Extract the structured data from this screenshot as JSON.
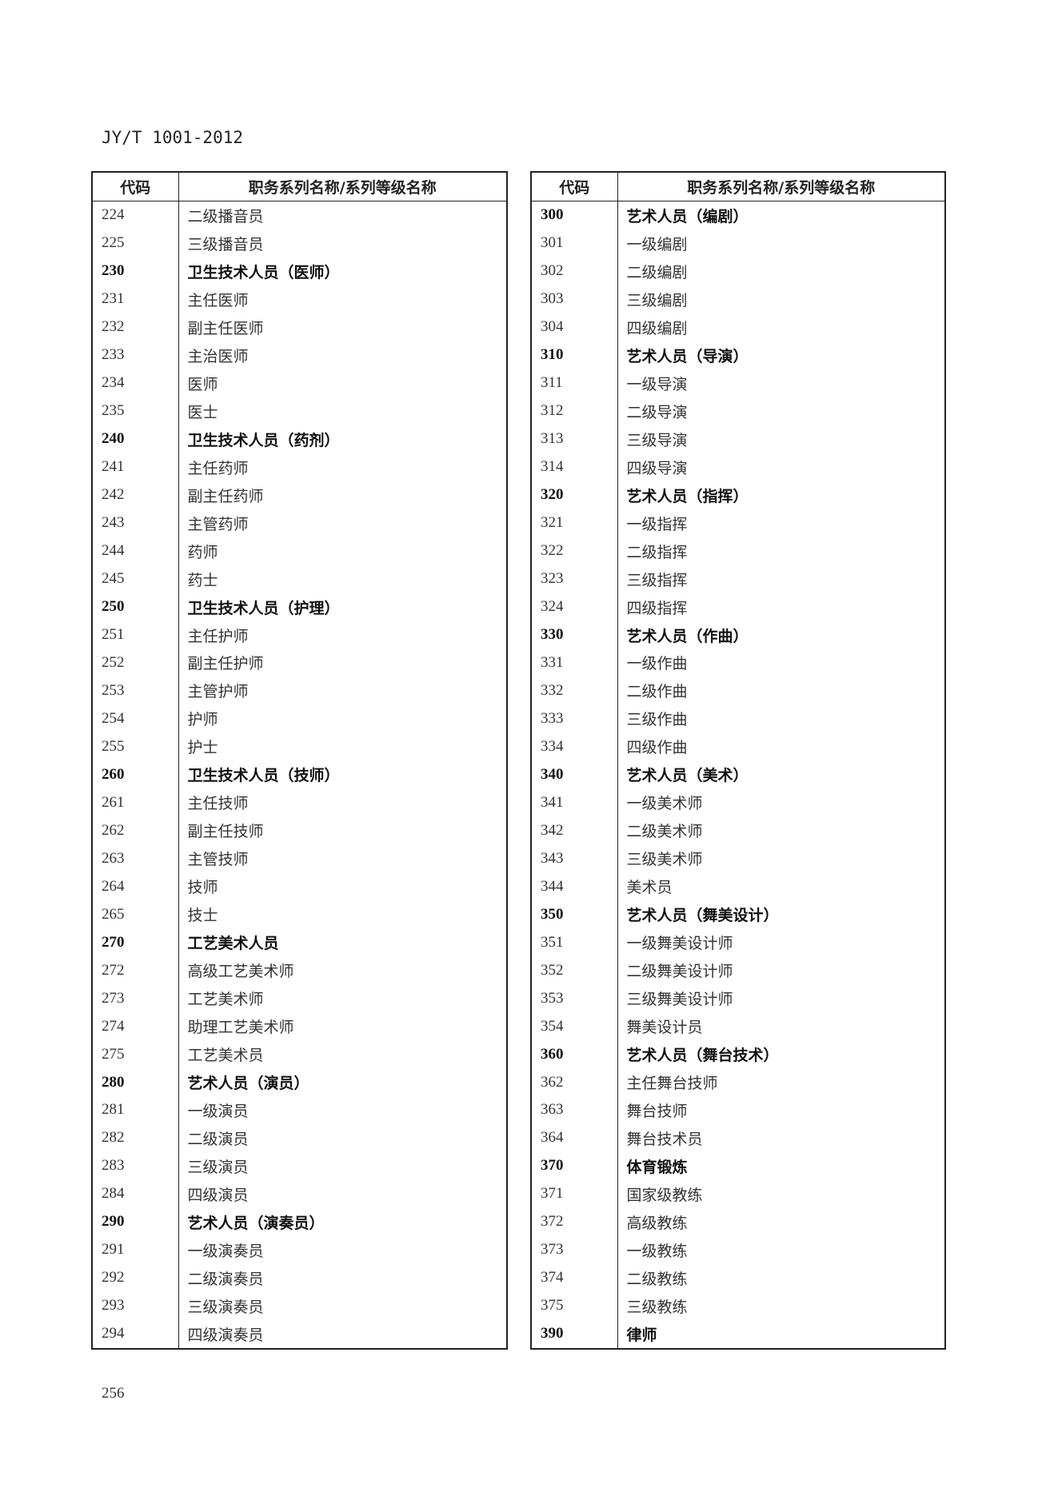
{
  "header": {
    "doc_id": "JY/T 1001-2012"
  },
  "columns": {
    "code": "代码",
    "name": "职务系列名称/系列等级名称"
  },
  "left_rows": [
    [
      "224",
      "二级播音员",
      false
    ],
    [
      "225",
      "三级播音员",
      false
    ],
    [
      "230",
      "卫生技术人员（医师）",
      true
    ],
    [
      "231",
      "主任医师",
      false
    ],
    [
      "232",
      "副主任医师",
      false
    ],
    [
      "233",
      "主治医师",
      false
    ],
    [
      "234",
      "医师",
      false
    ],
    [
      "235",
      "医士",
      false
    ],
    [
      "240",
      "卫生技术人员（药剂）",
      true
    ],
    [
      "241",
      "主任药师",
      false
    ],
    [
      "242",
      "副主任药师",
      false
    ],
    [
      "243",
      "主管药师",
      false
    ],
    [
      "244",
      "药师",
      false
    ],
    [
      "245",
      "药士",
      false
    ],
    [
      "250",
      "卫生技术人员（护理）",
      true
    ],
    [
      "251",
      "主任护师",
      false
    ],
    [
      "252",
      "副主任护师",
      false
    ],
    [
      "253",
      "主管护师",
      false
    ],
    [
      "254",
      "护师",
      false
    ],
    [
      "255",
      "护士",
      false
    ],
    [
      "260",
      "卫生技术人员（技师）",
      true
    ],
    [
      "261",
      "主任技师",
      false
    ],
    [
      "262",
      "副主任技师",
      false
    ],
    [
      "263",
      "主管技师",
      false
    ],
    [
      "264",
      "技师",
      false
    ],
    [
      "265",
      "技士",
      false
    ],
    [
      "270",
      "工艺美术人员",
      true
    ],
    [
      "272",
      "高级工艺美术师",
      false
    ],
    [
      "273",
      "工艺美术师",
      false
    ],
    [
      "274",
      "助理工艺美术师",
      false
    ],
    [
      "275",
      "工艺美术员",
      false
    ],
    [
      "280",
      "艺术人员（演员）",
      true
    ],
    [
      "281",
      "一级演员",
      false
    ],
    [
      "282",
      "二级演员",
      false
    ],
    [
      "283",
      "三级演员",
      false
    ],
    [
      "284",
      "四级演员",
      false
    ],
    [
      "290",
      "艺术人员（演奏员）",
      true
    ],
    [
      "291",
      "一级演奏员",
      false
    ],
    [
      "292",
      "二级演奏员",
      false
    ],
    [
      "293",
      "三级演奏员",
      false
    ],
    [
      "294",
      "四级演奏员",
      false
    ]
  ],
  "right_rows": [
    [
      "300",
      "艺术人员（编剧）",
      true
    ],
    [
      "301",
      "一级编剧",
      false
    ],
    [
      "302",
      "二级编剧",
      false
    ],
    [
      "303",
      "三级编剧",
      false
    ],
    [
      "304",
      "四级编剧",
      false
    ],
    [
      "310",
      "艺术人员（导演）",
      true
    ],
    [
      "311",
      "一级导演",
      false
    ],
    [
      "312",
      "二级导演",
      false
    ],
    [
      "313",
      "三级导演",
      false
    ],
    [
      "314",
      "四级导演",
      false
    ],
    [
      "320",
      "艺术人员（指挥）",
      true
    ],
    [
      "321",
      "一级指挥",
      false
    ],
    [
      "322",
      "二级指挥",
      false
    ],
    [
      "323",
      "三级指挥",
      false
    ],
    [
      "324",
      "四级指挥",
      false
    ],
    [
      "330",
      "艺术人员（作曲）",
      true
    ],
    [
      "331",
      "一级作曲",
      false
    ],
    [
      "332",
      "二级作曲",
      false
    ],
    [
      "333",
      "三级作曲",
      false
    ],
    [
      "334",
      "四级作曲",
      false
    ],
    [
      "340",
      "艺术人员（美术）",
      true
    ],
    [
      "341",
      "一级美术师",
      false
    ],
    [
      "342",
      "二级美术师",
      false
    ],
    [
      "343",
      "三级美术师",
      false
    ],
    [
      "344",
      "美术员",
      false
    ],
    [
      "350",
      "艺术人员（舞美设计）",
      true
    ],
    [
      "351",
      "一级舞美设计师",
      false
    ],
    [
      "352",
      "二级舞美设计师",
      false
    ],
    [
      "353",
      "三级舞美设计师",
      false
    ],
    [
      "354",
      "舞美设计员",
      false
    ],
    [
      "360",
      "艺术人员（舞台技术）",
      true
    ],
    [
      "362",
      "主任舞台技师",
      false
    ],
    [
      "363",
      "舞台技师",
      false
    ],
    [
      "364",
      "舞台技术员",
      false
    ],
    [
      "370",
      "体育锻炼",
      true
    ],
    [
      "371",
      "国家级教练",
      false
    ],
    [
      "372",
      "高级教练",
      false
    ],
    [
      "373",
      "一级教练",
      false
    ],
    [
      "374",
      "二级教练",
      false
    ],
    [
      "375",
      "三级教练",
      false
    ],
    [
      "390",
      "律师",
      true
    ]
  ],
  "footer": {
    "page_number": "256"
  }
}
